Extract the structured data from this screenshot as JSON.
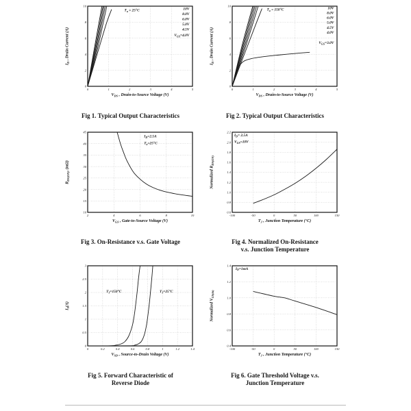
{
  "page": {
    "kind": "datasheet-typical-characteristics-figures"
  },
  "chart_data": [
    {
      "type": "line",
      "caption": "Fig 1. Typical Output Characteristics",
      "x": {
        "label": "V_{DS} , Drain-to-Source Voltage (V)",
        "min": 0,
        "max": 5,
        "ticks": [
          "0",
          "1",
          "2",
          "3",
          "4",
          "5"
        ],
        "grid": true
      },
      "y": {
        "label": "I_{D} , Drain Current (A)",
        "min": 0,
        "max": 10,
        "ticks": [
          "0",
          "2",
          "4",
          "6",
          "8",
          "10"
        ],
        "grid": true
      },
      "series": [
        {
          "name": "VGS=10V",
          "points": [
            [
              0,
              0
            ],
            [
              0.35,
              5.2
            ],
            [
              0.68,
              10
            ]
          ]
        },
        {
          "name": "VGS=8.0V",
          "points": [
            [
              0,
              0
            ],
            [
              0.38,
              5.1
            ],
            [
              0.73,
              10
            ]
          ]
        },
        {
          "name": "VGS=6.0V",
          "points": [
            [
              0,
              0
            ],
            [
              0.41,
              5.0
            ],
            [
              0.78,
              10
            ]
          ]
        },
        {
          "name": "VGS=5.0V",
          "points": [
            [
              0,
              0
            ],
            [
              0.44,
              4.9
            ],
            [
              0.84,
              10
            ]
          ]
        },
        {
          "name": "VGS=4.5V",
          "points": [
            [
              0,
              0
            ],
            [
              0.48,
              4.8
            ],
            [
              0.91,
              10
            ]
          ]
        },
        {
          "name": "VGS=4.0V",
          "points": [
            [
              0,
              0
            ],
            [
              0.52,
              4.6
            ],
            [
              0.9,
              7.9
            ],
            [
              1.14,
              9.6
            ]
          ]
        }
      ],
      "labels": [
        {
          "text": "T_{a} = 25°C",
          "x": 1.75,
          "y": 9.35,
          "anchor": "start"
        },
        {
          "text": "10V",
          "x": 4.85,
          "y": 9.55,
          "anchor": "end"
        },
        {
          "text": "8.0V",
          "x": 4.85,
          "y": 8.9,
          "anchor": "end"
        },
        {
          "text": "6.0V",
          "x": 4.85,
          "y": 8.25,
          "anchor": "end"
        },
        {
          "text": "5.0V",
          "x": 4.85,
          "y": 7.6,
          "anchor": "end"
        },
        {
          "text": "4.5V",
          "x": 4.85,
          "y": 6.95,
          "anchor": "end"
        },
        {
          "text": "V_{GS}=4.0V",
          "x": 4.85,
          "y": 6.25,
          "anchor": "end"
        }
      ]
    },
    {
      "type": "line",
      "caption": "Fig 2. Typical Output Characteristics",
      "x": {
        "label": "V_{DS} , Drain-to-Source Voltage (V)",
        "min": 0,
        "max": 5,
        "ticks": [
          "0",
          "1",
          "2",
          "3",
          "4",
          "5"
        ],
        "grid": true
      },
      "y": {
        "label": "I_{D} , Drain Current (A)",
        "min": 0,
        "max": 10,
        "ticks": [
          "0",
          "2",
          "4",
          "6",
          "8",
          "10"
        ],
        "grid": true
      },
      "series": [
        {
          "name": "VGS=10V",
          "points": [
            [
              0,
              0
            ],
            [
              0.48,
              5.2
            ],
            [
              0.98,
              10
            ]
          ]
        },
        {
          "name": "VGS=8.0V",
          "points": [
            [
              0,
              0
            ],
            [
              0.51,
              5.1
            ],
            [
              1.03,
              10
            ]
          ]
        },
        {
          "name": "VGS=6.0V",
          "points": [
            [
              0,
              0
            ],
            [
              0.54,
              5.0
            ],
            [
              1.09,
              10
            ]
          ]
        },
        {
          "name": "VGS=5.0V",
          "points": [
            [
              0,
              0
            ],
            [
              0.58,
              4.9
            ],
            [
              1.16,
              10
            ]
          ]
        },
        {
          "name": "VGS=4.5V",
          "points": [
            [
              0,
              0
            ],
            [
              0.62,
              4.8
            ],
            [
              1.24,
              10
            ]
          ]
        },
        {
          "name": "VGS=4.0V",
          "points": [
            [
              0,
              0
            ],
            [
              0.68,
              4.7
            ],
            [
              1.15,
              7.9
            ],
            [
              1.42,
              9.7
            ]
          ]
        },
        {
          "name": "VGS=3.0V",
          "points": [
            [
              0,
              0
            ],
            [
              0.15,
              1.4
            ],
            [
              0.3,
              2.4
            ],
            [
              0.45,
              2.9
            ],
            [
              0.6,
              3.2
            ],
            [
              0.9,
              3.45
            ],
            [
              1.5,
              3.7
            ],
            [
              2.2,
              3.9
            ],
            [
              3.0,
              4.1
            ],
            [
              3.7,
              4.25
            ]
          ]
        }
      ],
      "labels": [
        {
          "text": "T_{a} = 150°C",
          "x": 1.65,
          "y": 9.45,
          "anchor": "start"
        },
        {
          "text": "10V",
          "x": 4.85,
          "y": 9.6,
          "anchor": "end"
        },
        {
          "text": "8.0V",
          "x": 4.85,
          "y": 9.0,
          "anchor": "end"
        },
        {
          "text": "6.0V",
          "x": 4.85,
          "y": 8.4,
          "anchor": "end"
        },
        {
          "text": "5.0V",
          "x": 4.85,
          "y": 7.8,
          "anchor": "end"
        },
        {
          "text": "4.5V",
          "x": 4.85,
          "y": 7.2,
          "anchor": "end"
        },
        {
          "text": "4.0V",
          "x": 4.85,
          "y": 6.6,
          "anchor": "end"
        },
        {
          "text": "V_{GS}=3.0V",
          "x": 4.85,
          "y": 5.3,
          "anchor": "end"
        }
      ]
    },
    {
      "type": "line",
      "caption": "Fig 3. On-Resistance  v.s. Gate Voltage",
      "x": {
        "label": "V_{GS} , Gate-to-Source Voltage (V)",
        "min": 2,
        "max": 10,
        "ticks": [
          "2",
          "4",
          "6",
          "8",
          "10"
        ],
        "grid": true
      },
      "y": {
        "label": "R_{DS(ON)}, (mΩ)",
        "min": 10,
        "max": 45,
        "ticks": [
          "10",
          "15",
          "20",
          "25",
          "30",
          "35",
          "40",
          "45"
        ],
        "grid": true
      },
      "series": [
        {
          "name": "RDS(on)",
          "points": [
            [
              4.25,
              45
            ],
            [
              4.5,
              40
            ],
            [
              4.75,
              36
            ],
            [
              5,
              32.5
            ],
            [
              5.5,
              27.5
            ],
            [
              6,
              24.5
            ],
            [
              6.5,
              22.3
            ],
            [
              7,
              20.8
            ],
            [
              7.5,
              19.7
            ],
            [
              8,
              18.9
            ],
            [
              8.5,
              18.3
            ],
            [
              9,
              17.8
            ],
            [
              9.5,
              17.4
            ],
            [
              10,
              17
            ]
          ]
        }
      ],
      "labels": [
        {
          "text": "I_{D}=2.5A",
          "x": 6.3,
          "y": 42.8,
          "anchor": "start"
        },
        {
          "text": "T_{a}=25°C",
          "x": 6.3,
          "y": 39.8,
          "anchor": "start"
        }
      ]
    },
    {
      "type": "line",
      "caption": "Fig 4. Normalized On-Resistance\nv.s. Junction Temperature",
      "x": {
        "label": "T_{J} , Junction Temperature (°C)",
        "min": -100,
        "max": 150,
        "ticks": [
          "-100",
          "-50",
          "0",
          "50",
          "100",
          "150"
        ],
        "grid": true
      },
      "y": {
        "label": "Normalized R_{DS(ON)}",
        "min": 0.6,
        "max": 2.2,
        "ticks": [
          "0.6",
          "0.8",
          "1.0",
          "1.2",
          "1.4",
          "1.6",
          "1.8",
          "2.0",
          "2.2"
        ],
        "grid": true
      },
      "series": [
        {
          "name": "normalized-rdson",
          "points": [
            [
              -50,
              0.78
            ],
            [
              -25,
              0.86
            ],
            [
              0,
              0.95
            ],
            [
              25,
              1.06
            ],
            [
              50,
              1.18
            ],
            [
              75,
              1.32
            ],
            [
              100,
              1.48
            ],
            [
              125,
              1.66
            ],
            [
              150,
              1.86
            ]
          ]
        }
      ],
      "labels": [
        {
          "text": "I_{D}= 2.5A",
          "x": -95,
          "y": 2.12,
          "anchor": "start"
        },
        {
          "text": "V_{GS}=10V",
          "x": -95,
          "y": 1.99,
          "anchor": "start"
        }
      ]
    },
    {
      "type": "line",
      "caption": "Fig 5. Forward Characteristic of\nReverse Diode",
      "x": {
        "label": "V_{SD} , Source-to-Drain Voltage (V)",
        "min": 0,
        "max": 1.4,
        "ticks": [
          "0",
          "0.2",
          "0.4",
          "0.6",
          "0.8",
          "1",
          "1.2",
          "1.4"
        ],
        "grid": true
      },
      "y": {
        "label": "I_{S}(A)",
        "min": 0,
        "max": 3,
        "ticks": [
          "0",
          "0.5",
          "1",
          "1.5",
          "2",
          "2.5",
          "3"
        ],
        "grid": true
      },
      "series": [
        {
          "name": "TJ=150C",
          "points": [
            [
              0,
              0
            ],
            [
              0.3,
              0.005
            ],
            [
              0.38,
              0.03
            ],
            [
              0.45,
              0.08
            ],
            [
              0.5,
              0.17
            ],
            [
              0.55,
              0.38
            ],
            [
              0.6,
              0.8
            ],
            [
              0.63,
              1.3
            ],
            [
              0.66,
              2.0
            ],
            [
              0.68,
              2.55
            ],
            [
              0.7,
              3.0
            ]
          ]
        },
        {
          "name": "TJ=25C",
          "points": [
            [
              0,
              0
            ],
            [
              0.55,
              0.005
            ],
            [
              0.63,
              0.03
            ],
            [
              0.68,
              0.08
            ],
            [
              0.72,
              0.18
            ],
            [
              0.76,
              0.45
            ],
            [
              0.79,
              0.85
            ],
            [
              0.82,
              1.5
            ],
            [
              0.84,
              2.05
            ],
            [
              0.86,
              2.65
            ],
            [
              0.87,
              3.0
            ]
          ]
        }
      ],
      "labels": [
        {
          "text": "T_{J}=150°C",
          "x": 0.35,
          "y": 2.0,
          "anchor": "middle"
        },
        {
          "text": "T_{J}=25°C",
          "x": 1.05,
          "y": 2.0,
          "anchor": "middle"
        }
      ]
    },
    {
      "type": "line",
      "caption": "Fig 6. Gate Threshold Voltage v.s.\nJunction Temperature",
      "x": {
        "label": "T_{J} , Junction Temperature (°C)",
        "min": -100,
        "max": 150,
        "ticks": [
          "-100",
          "-50",
          "0",
          "50",
          "100",
          "150"
        ],
        "grid": true
      },
      "y": {
        "label": "Normalized V_{GS(th)}",
        "min": 0.4,
        "max": 1.4,
        "ticks": [
          "0.4",
          "0.6",
          "0.8",
          "1.0",
          "1.2",
          "1.4"
        ],
        "grid": true
      },
      "series": [
        {
          "name": "normalized-vgsth",
          "points": [
            [
              -50,
              1.08
            ],
            [
              0,
              1.02
            ],
            [
              25,
              1.0
            ],
            [
              50,
              0.96
            ],
            [
              100,
              0.88
            ],
            [
              150,
              0.79
            ]
          ]
        }
      ],
      "labels": [
        {
          "text": "I_{D}=1mA",
          "x": -92,
          "y": 1.35,
          "anchor": "start"
        }
      ]
    }
  ],
  "colors": {
    "curve": "#1a1a1a",
    "grid": "#9a9a9a",
    "frame": "#111111",
    "divider": "#b9b9b9"
  }
}
